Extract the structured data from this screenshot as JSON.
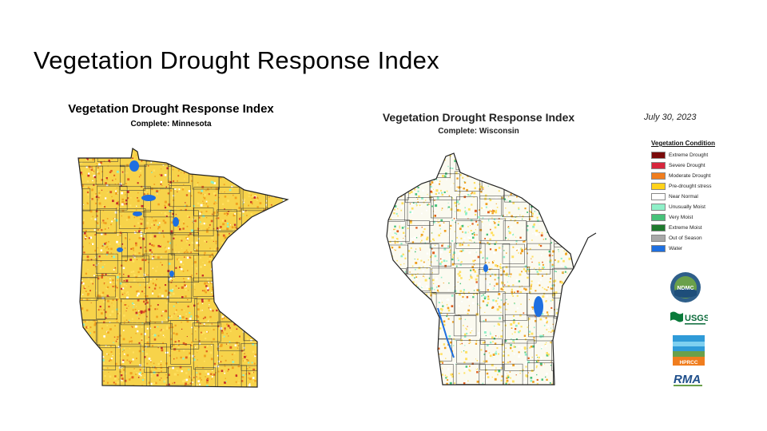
{
  "slide": {
    "title": "Vegetation Drought Response Index"
  },
  "minnesota": {
    "title": "Vegetation Drought Response Index",
    "subtitle": "Complete: Minnesota"
  },
  "wisconsin": {
    "title": "Vegetation Drought Response Index",
    "subtitle": "Complete: Wisconsin",
    "date": "July 30, 2023"
  },
  "legend": {
    "title": "Vegetation Condition",
    "items": [
      {
        "label": "Extreme Drought",
        "color": "#7a0a0a"
      },
      {
        "label": "Severe Drought",
        "color": "#d7263d"
      },
      {
        "label": "Moderate Drought",
        "color": "#f07d1e"
      },
      {
        "label": "Pre-drought stress",
        "color": "#ffd21a"
      },
      {
        "label": "Near Normal",
        "color": "#ffffff"
      },
      {
        "label": "Unusually Moist",
        "color": "#8ff0c8"
      },
      {
        "label": "Very Moist",
        "color": "#47c27a"
      },
      {
        "label": "Extreme Moist",
        "color": "#1f7a2e"
      },
      {
        "label": "Out of Season",
        "color": "#a8a8a8"
      },
      {
        "label": "Water",
        "color": "#1e6fe0"
      }
    ]
  },
  "logos": {
    "ndmc": "NDMC",
    "usgs": "USGS",
    "hprcc": "HPRCC",
    "rma": "RMA"
  }
}
